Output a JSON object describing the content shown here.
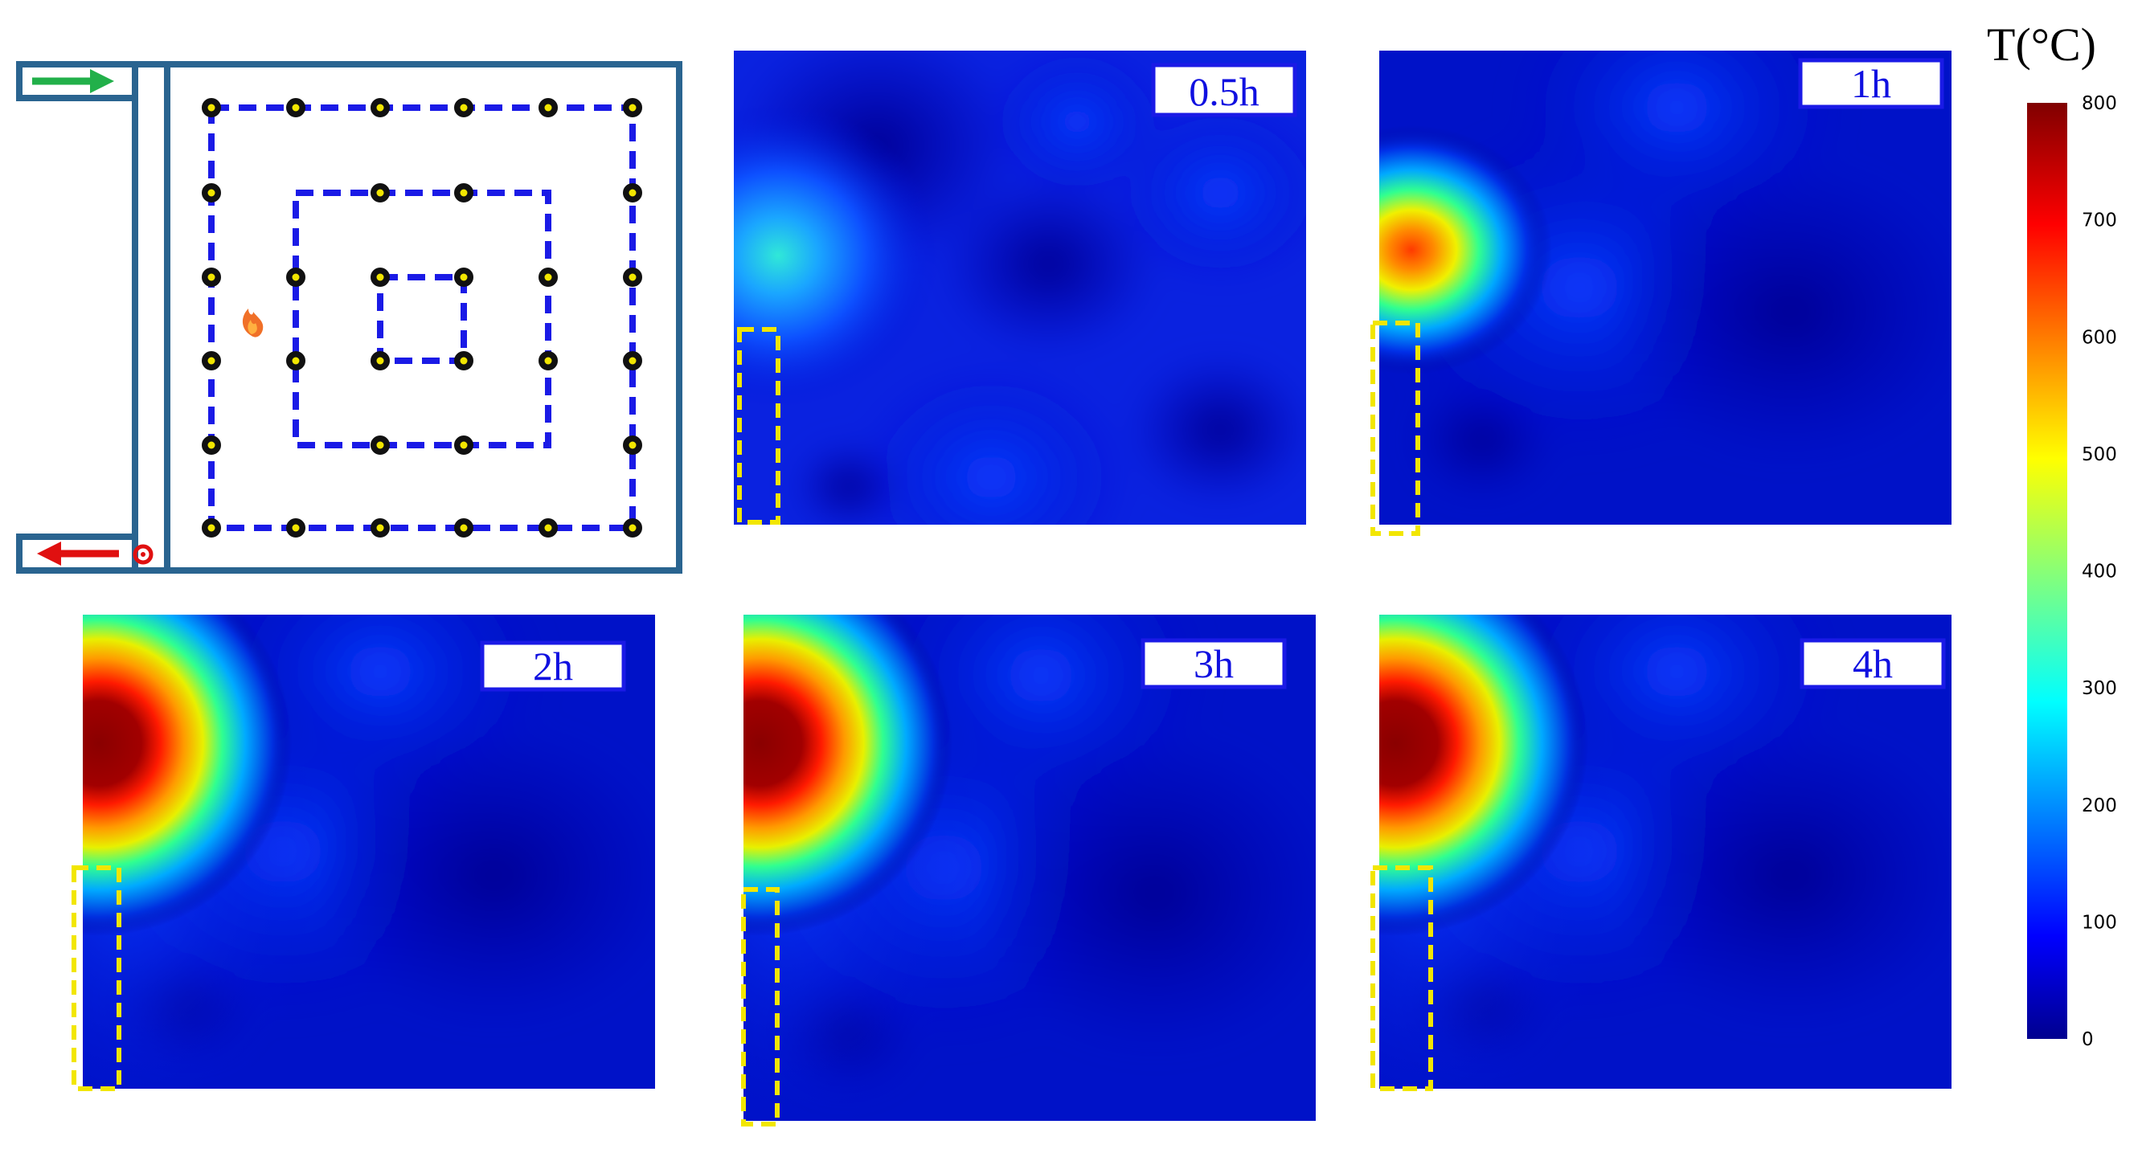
{
  "chart_data": {
    "type": "heatmap",
    "colorbar": {
      "title": "T(°C)",
      "range": [
        0,
        800
      ],
      "ticks": [
        "0",
        "100",
        "200",
        "300",
        "400",
        "500",
        "600",
        "700",
        "800"
      ],
      "colormap": "jet"
    },
    "panels": [
      {
        "label": "0.5h",
        "hotspot_peak_C": 330
      },
      {
        "label": "1h",
        "hotspot_peak_C": 680
      },
      {
        "label": "2h",
        "hotspot_peak_C": 800
      },
      {
        "label": "3h",
        "hotspot_peak_C": 800
      },
      {
        "label": "4h",
        "hotspot_peak_C": 800
      }
    ],
    "schematic": {
      "description_icons": [
        "inlet-arrow-icon",
        "outlet-arrow-icon",
        "fire-icon",
        "sensor-icon"
      ],
      "loops": 3,
      "colors": {
        "loop": "#1a1ae6",
        "wall": "#2a6490",
        "inlet": "#22b04a",
        "outlet": "#e01010",
        "highlight": "#f2e600"
      }
    }
  }
}
